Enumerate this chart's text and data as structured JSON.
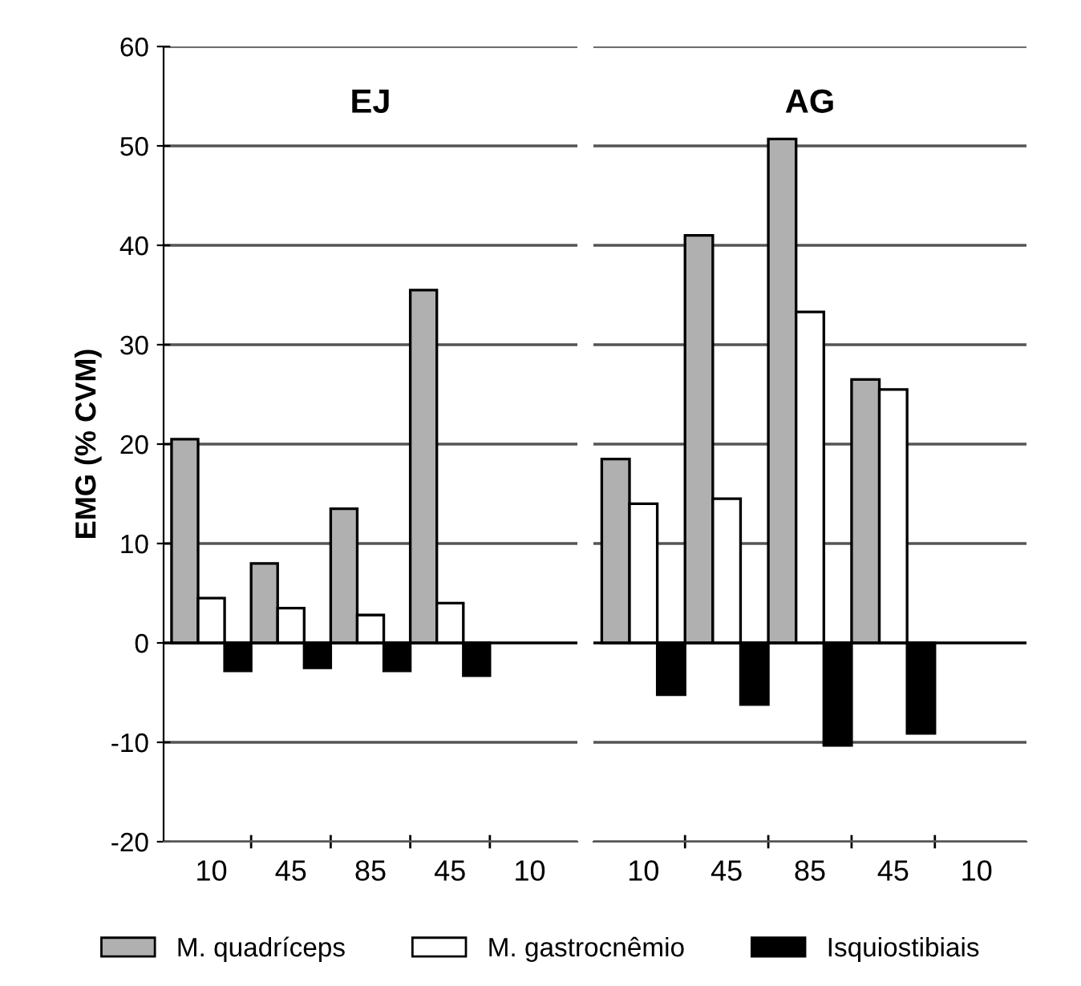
{
  "chart_data": [
    {
      "type": "bar",
      "title": "EJ",
      "ylabel": "EMG (% CVM)",
      "categories": [
        "10",
        "45",
        "85",
        "45",
        "10"
      ],
      "ylim": [
        -20,
        60
      ],
      "yticks": [
        -20,
        -10,
        0,
        10,
        20,
        30,
        40,
        50,
        60
      ],
      "grid": "y",
      "legend": "bottom",
      "series": [
        {
          "name": "M. quadríceps",
          "color": "#b0b0b0",
          "values": [
            20.5,
            8,
            13.5,
            35.5,
            null
          ]
        },
        {
          "name": "M. gastrocnêmio",
          "color": "#ffffff",
          "values": [
            4.5,
            3.5,
            2.8,
            4,
            null
          ]
        },
        {
          "name": "Isquiostibiais",
          "color": "#000000",
          "values": [
            -2.8,
            -2.5,
            -2.8,
            -3.3,
            null
          ]
        }
      ]
    },
    {
      "type": "bar",
      "title": "AG",
      "categories": [
        "10",
        "45",
        "85",
        "45",
        "10"
      ],
      "ylim": [
        -20,
        60
      ],
      "grid": "y",
      "tick_labels": "x",
      "series": [
        {
          "color": "#b0b0b0",
          "values": [
            18.5,
            41,
            50.7,
            26.5,
            null
          ]
        },
        {
          "color": "#ffffff",
          "values": [
            14,
            14.5,
            33.3,
            25.5,
            null
          ]
        },
        {
          "color": "#000000",
          "values": [
            -5.2,
            -6.2,
            -10.3,
            -9.1,
            null
          ]
        }
      ]
    }
  ]
}
